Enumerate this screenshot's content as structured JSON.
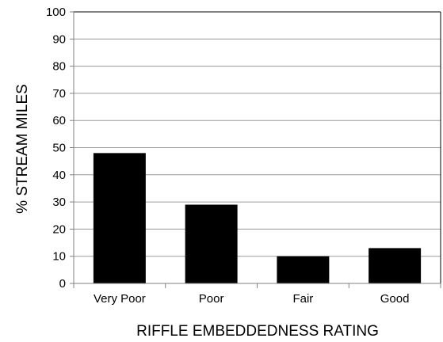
{
  "chart_data": {
    "type": "bar",
    "title": "",
    "xlabel": "RIFFLE EMBEDDEDNESS RATING",
    "ylabel": "% STREAM MILES",
    "categories": [
      "Very Poor",
      "Poor",
      "Fair",
      "Good"
    ],
    "values": [
      48,
      29,
      10,
      13
    ],
    "ylim": [
      0,
      100
    ],
    "yticks": [
      0,
      10,
      20,
      30,
      40,
      50,
      60,
      70,
      80,
      90,
      100
    ],
    "ytick_labels": [
      "0",
      "10",
      "20",
      "30",
      "40",
      "50",
      "60",
      "70",
      "80",
      "90",
      "100"
    ],
    "grid": true,
    "legend": "none",
    "colors": {
      "bar": "#000000",
      "grid": "#9a9a9a",
      "axis": "#808080",
      "frame": "#000000"
    }
  }
}
